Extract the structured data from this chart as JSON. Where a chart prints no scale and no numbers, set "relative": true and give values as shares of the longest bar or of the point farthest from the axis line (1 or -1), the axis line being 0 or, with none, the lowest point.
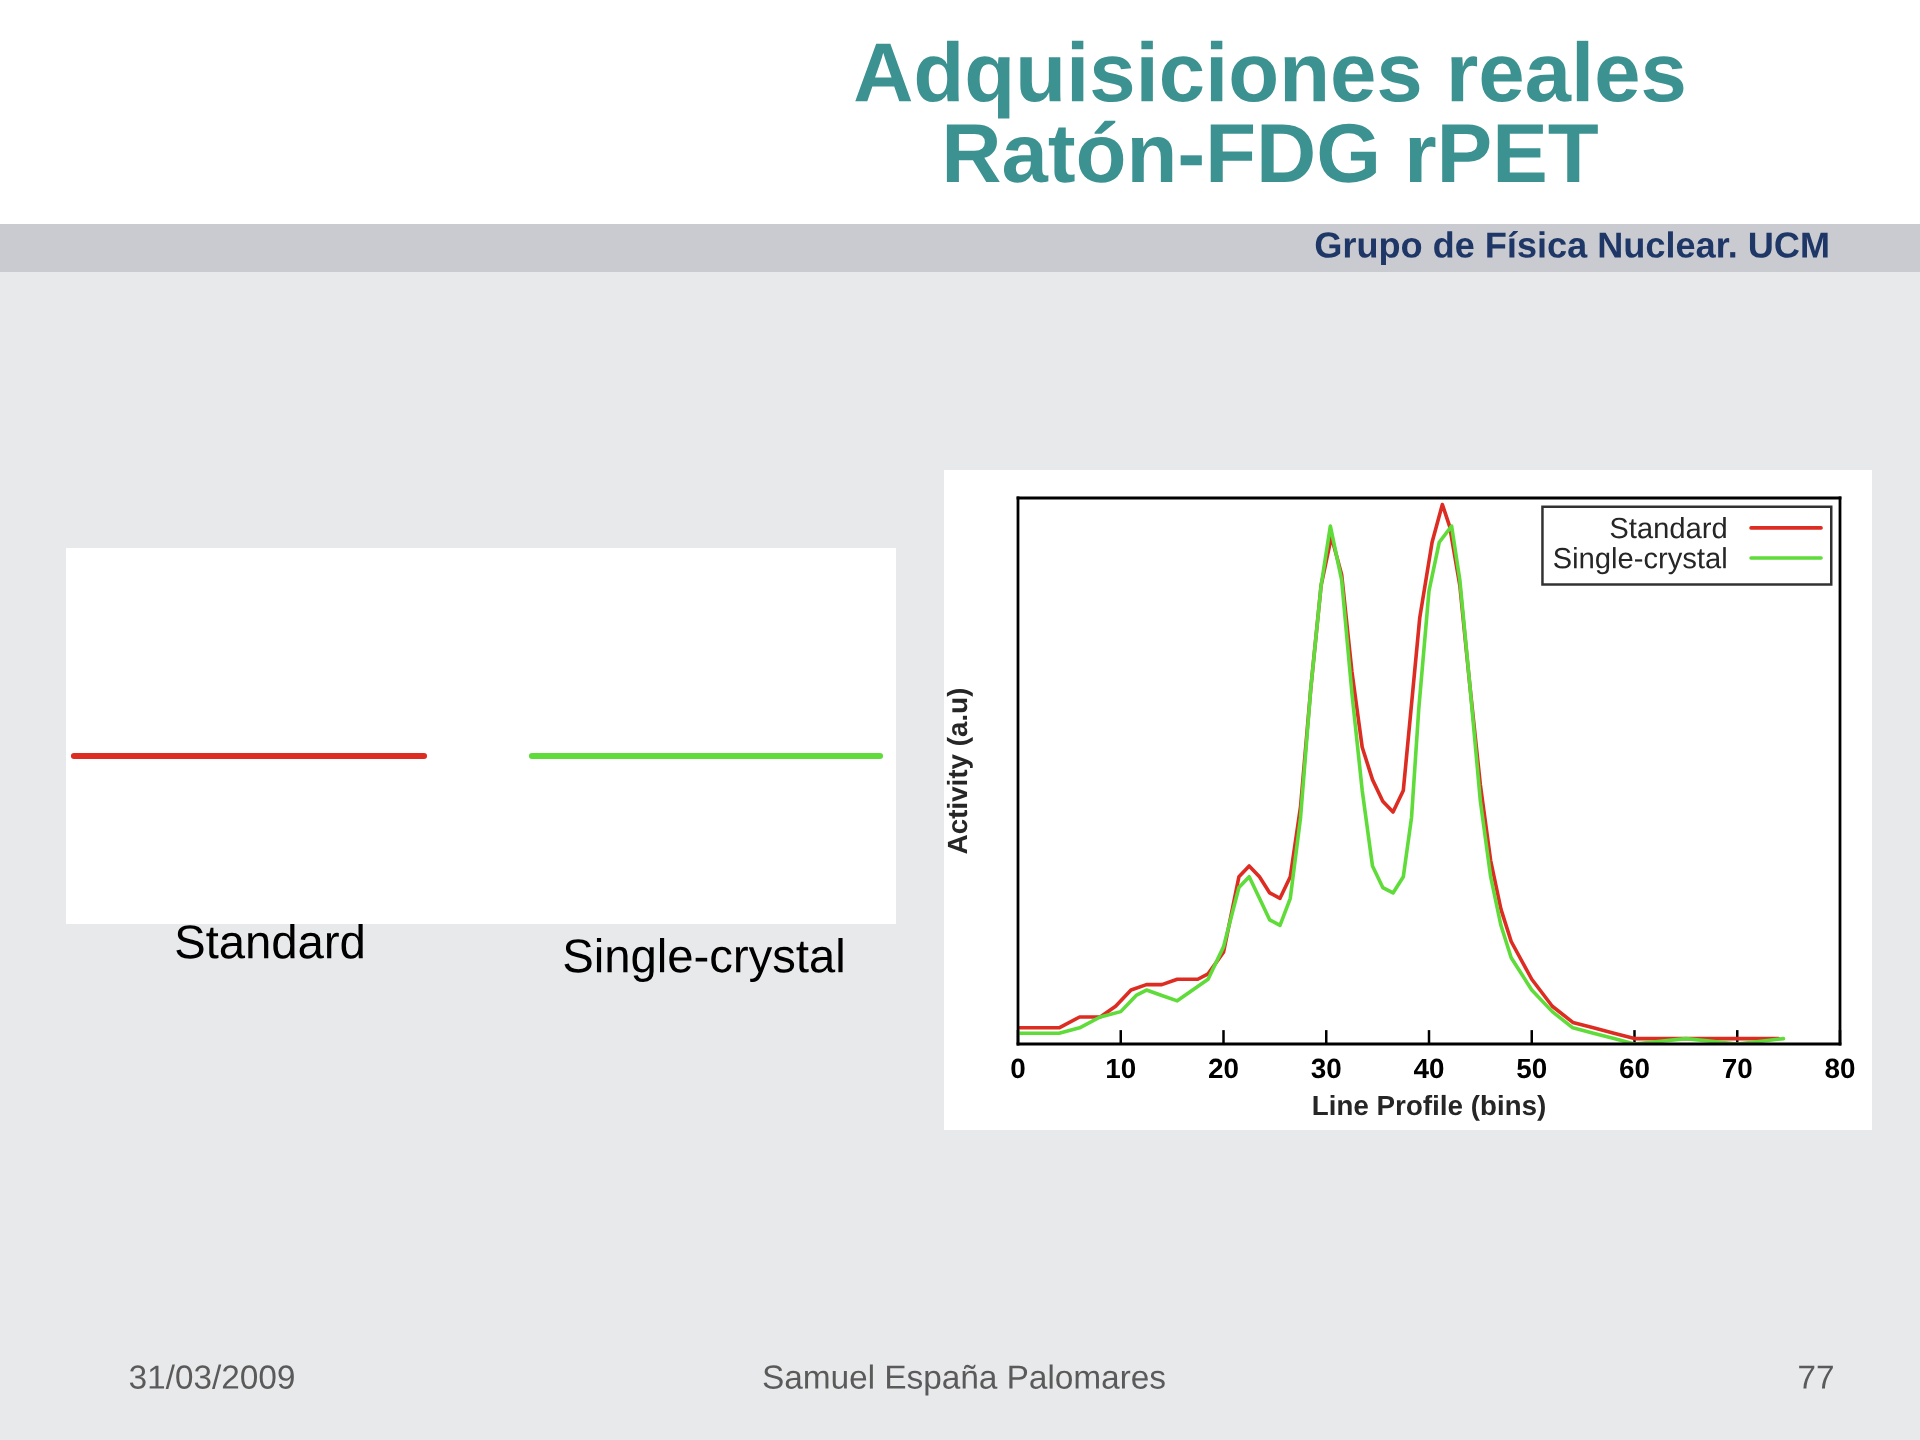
{
  "chart_data": {
    "type": "line",
    "title": "Adquisiciones reales\nRatón-FDG rPET",
    "xlabel": "Line Profile (bins)",
    "ylabel": "Activity (a.u)",
    "relative": true,
    "xlim": [
      0,
      80
    ],
    "xticks": [
      0,
      10,
      20,
      30,
      40,
      50,
      60,
      70,
      80
    ],
    "legend": "top right",
    "series": [
      {
        "name": "Standard",
        "color": "#dd2c22",
        "x": [
          0,
          1.5,
          4,
          6,
          8,
          9.5,
          11,
          12.5,
          14,
          15.5,
          17.5,
          18.5,
          20,
          21.5,
          22.5,
          23.5,
          24.5,
          25.5,
          26.5,
          27.5,
          28.5,
          29.5,
          30.5,
          31.5,
          32.5,
          33.5,
          34.5,
          35.5,
          36.5,
          37.5,
          38.3,
          39.1,
          40.3,
          41.3,
          42,
          43,
          44,
          45,
          46,
          47,
          48,
          50,
          52,
          54,
          56,
          58,
          60,
          65,
          70,
          74
        ],
        "values": [
          0.03,
          0.03,
          0.03,
          0.05,
          0.05,
          0.07,
          0.1,
          0.11,
          0.11,
          0.12,
          0.12,
          0.13,
          0.17,
          0.31,
          0.33,
          0.31,
          0.28,
          0.27,
          0.31,
          0.44,
          0.66,
          0.85,
          0.94,
          0.87,
          0.69,
          0.55,
          0.49,
          0.45,
          0.43,
          0.47,
          0.63,
          0.79,
          0.93,
          1,
          0.96,
          0.85,
          0.66,
          0.48,
          0.34,
          0.25,
          0.19,
          0.12,
          0.07,
          0.04,
          0.03,
          0.02,
          0.01,
          0.01,
          0.01,
          0.01
        ]
      },
      {
        "name": "Single-crystal",
        "color": "#5fdc3a",
        "x": [
          0,
          2,
          4,
          6,
          8,
          10,
          11.5,
          12.5,
          14,
          15.5,
          17,
          18.5,
          20,
          21.5,
          22.5,
          23.5,
          24.5,
          25.5,
          26.5,
          27.5,
          28.5,
          29.5,
          30.4,
          31.5,
          32.5,
          33.5,
          34.5,
          35.5,
          36.5,
          37.5,
          38.3,
          39,
          40,
          41,
          42.2,
          43,
          44,
          45,
          46,
          47,
          48,
          50,
          52,
          54,
          56,
          58,
          60,
          65,
          70,
          74.5
        ],
        "values": [
          0.02,
          0.02,
          0.02,
          0.03,
          0.05,
          0.06,
          0.09,
          0.1,
          0.09,
          0.08,
          0.1,
          0.12,
          0.18,
          0.29,
          0.31,
          0.27,
          0.23,
          0.22,
          0.27,
          0.42,
          0.66,
          0.85,
          0.96,
          0.86,
          0.65,
          0.47,
          0.33,
          0.29,
          0.28,
          0.31,
          0.42,
          0.62,
          0.84,
          0.93,
          0.96,
          0.86,
          0.66,
          0.45,
          0.31,
          0.22,
          0.16,
          0.1,
          0.06,
          0.03,
          0.02,
          0.01,
          0.0,
          0.01,
          0.0,
          0.01
        ]
      }
    ],
    "annotations": [
      "Standard",
      "Single-crystal",
      "Grupo de Física Nuclear. UCM",
      "31/03/2009",
      "Samuel España Palomares",
      "77"
    ]
  }
}
